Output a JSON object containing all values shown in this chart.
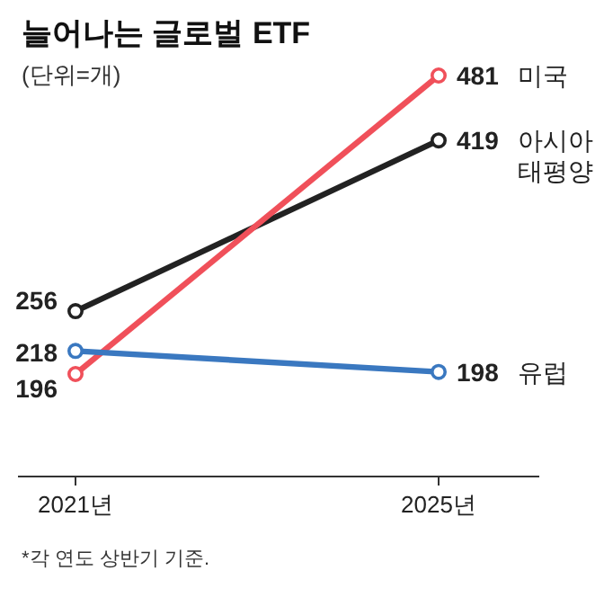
{
  "chart_data": {
    "type": "line",
    "title": "늘어나는 글로벌 ETF",
    "subtitle": "(단위=개)",
    "categories": [
      "2021년",
      "2025년"
    ],
    "series": [
      {
        "name": "아시아\n태평양",
        "color": "#222222",
        "values": [
          256,
          419
        ]
      },
      {
        "name": "미국",
        "color": "#f0505a",
        "values": [
          196,
          481
        ]
      },
      {
        "name": "유럽",
        "color": "#3a78c0",
        "values": [
          218,
          198
        ]
      }
    ],
    "data_labels": true,
    "marker": "circle",
    "annotations": [
      "*각 연도 상반기 기준."
    ]
  }
}
